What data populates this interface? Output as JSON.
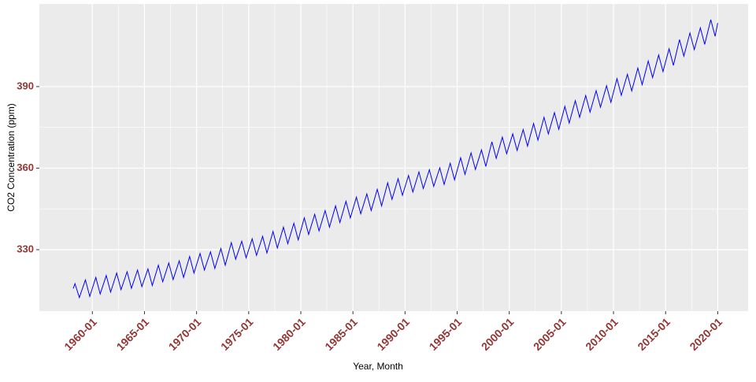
{
  "chart_data": {
    "type": "line",
    "xlabel": "Year, Month",
    "ylabel": "CO2 Concentration (ppm)",
    "color": "#0000ff",
    "grid": true,
    "x": [
      "1958-03",
      "1958-05",
      "1958-10",
      "1959-05",
      "1959-10",
      "1960-05",
      "1960-10",
      "1961-05",
      "1961-10",
      "1962-05",
      "1962-10",
      "1963-05",
      "1963-10",
      "1964-05",
      "1964-10",
      "1965-05",
      "1965-10",
      "1966-05",
      "1966-10",
      "1967-05",
      "1967-10",
      "1968-05",
      "1968-10",
      "1969-05",
      "1969-10",
      "1970-05",
      "1970-10",
      "1971-05",
      "1971-10",
      "1972-05",
      "1972-10",
      "1973-05",
      "1973-10",
      "1974-05",
      "1974-10",
      "1975-05",
      "1975-10",
      "1976-05",
      "1976-10",
      "1977-05",
      "1977-10",
      "1978-05",
      "1978-10",
      "1979-05",
      "1979-10",
      "1980-05",
      "1980-10",
      "1981-05",
      "1981-10",
      "1982-05",
      "1982-10",
      "1983-05",
      "1983-10",
      "1984-05",
      "1984-10",
      "1985-05",
      "1985-10",
      "1986-05",
      "1986-10",
      "1987-05",
      "1987-10",
      "1988-05",
      "1988-10",
      "1989-05",
      "1989-10",
      "1990-05",
      "1990-10",
      "1991-05",
      "1991-10",
      "1992-05",
      "1992-10",
      "1993-05",
      "1993-10",
      "1994-05",
      "1994-10",
      "1995-05",
      "1995-10",
      "1996-05",
      "1996-10",
      "1997-05",
      "1997-10",
      "1998-05",
      "1998-10",
      "1999-05",
      "1999-10",
      "2000-05",
      "2000-10",
      "2001-05",
      "2001-10",
      "2002-05",
      "2002-10",
      "2003-05",
      "2003-10",
      "2004-05",
      "2004-10",
      "2005-05",
      "2005-10",
      "2006-05",
      "2006-10",
      "2007-05",
      "2007-10",
      "2008-05",
      "2008-10",
      "2009-05",
      "2009-10",
      "2010-05",
      "2010-10",
      "2011-05",
      "2011-10",
      "2012-05",
      "2012-10",
      "2013-05",
      "2013-10",
      "2014-05",
      "2014-10",
      "2015-05",
      "2015-10",
      "2016-05",
      "2016-10",
      "2017-05",
      "2017-10",
      "2018-05",
      "2018-10",
      "2019-05",
      "2019-10",
      "2020-01"
    ],
    "values": [
      315.7,
      317.5,
      312.4,
      318.9,
      312.8,
      319.8,
      313.7,
      320.5,
      314.4,
      321.4,
      315.3,
      321.9,
      315.8,
      322.5,
      316.4,
      322.9,
      316.8,
      324.3,
      318.2,
      325.1,
      319.0,
      325.9,
      319.8,
      327.5,
      321.4,
      328.6,
      322.5,
      329.2,
      323.1,
      330.4,
      324.3,
      332.6,
      326.5,
      333.1,
      327.0,
      334.0,
      327.9,
      334.9,
      328.8,
      336.7,
      330.6,
      338.3,
      332.2,
      339.7,
      333.6,
      341.7,
      335.6,
      343.0,
      336.9,
      344.4,
      338.3,
      346.1,
      340.0,
      347.8,
      341.7,
      349.3,
      343.2,
      350.5,
      344.4,
      352.2,
      346.1,
      354.6,
      348.5,
      356.1,
      350.0,
      357.3,
      351.2,
      358.6,
      352.5,
      359.4,
      353.3,
      360.1,
      354.0,
      361.8,
      355.7,
      363.8,
      357.7,
      365.6,
      359.5,
      366.7,
      360.6,
      369.7,
      363.6,
      371.4,
      365.3,
      372.6,
      366.5,
      374.2,
      368.1,
      376.4,
      370.3,
      378.7,
      372.6,
      380.4,
      374.3,
      382.7,
      376.6,
      384.8,
      378.7,
      386.7,
      380.6,
      388.5,
      382.4,
      390.3,
      384.2,
      392.9,
      386.8,
      394.5,
      388.4,
      396.8,
      390.7,
      399.4,
      393.3,
      401.6,
      395.5,
      403.9,
      397.8,
      407.3,
      401.2,
      409.7,
      403.6,
      411.6,
      405.5,
      414.6,
      408.5,
      413.4
    ],
    "xlim": [
      "1954-12",
      "2022-12"
    ],
    "xticks": [
      "1960-01",
      "1965-01",
      "1970-01",
      "1975-01",
      "1980-01",
      "1985-01",
      "1990-01",
      "1995-01",
      "2000-01",
      "2005-01",
      "2010-01",
      "2015-01",
      "2020-01"
    ],
    "ylim": [
      307.4,
      420.4
    ],
    "yticks": [
      330,
      360,
      390
    ]
  }
}
